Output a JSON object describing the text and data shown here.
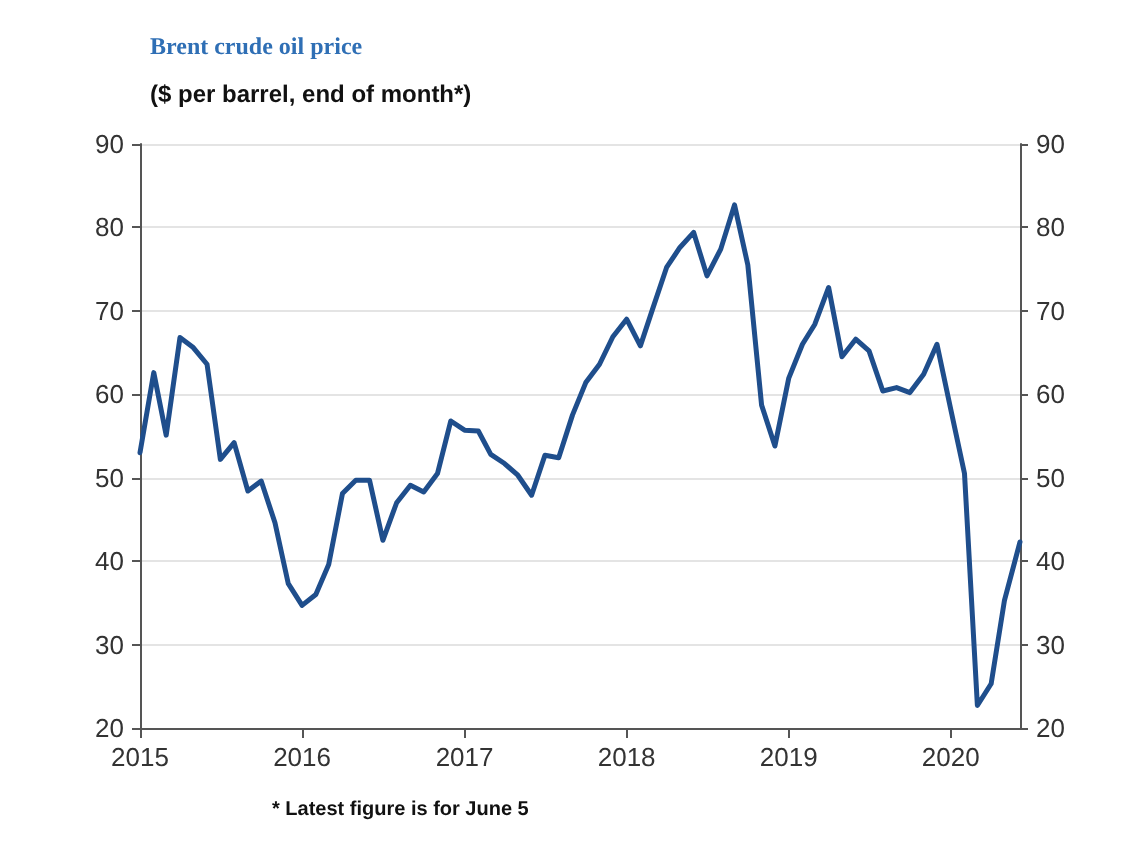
{
  "chart_data": {
    "type": "line",
    "title": "Brent crude oil price",
    "subtitle": "($ per barrel, end of month*)",
    "annotations": [
      "* Latest figure is for June 5"
    ],
    "x": [
      "2015-01",
      "2015-02",
      "2015-03",
      "2015-04",
      "2015-05",
      "2015-06",
      "2015-07",
      "2015-08",
      "2015-09",
      "2015-10",
      "2015-11",
      "2015-12",
      "2016-01",
      "2016-02",
      "2016-03",
      "2016-04",
      "2016-05",
      "2016-06",
      "2016-07",
      "2016-08",
      "2016-09",
      "2016-10",
      "2016-11",
      "2016-12",
      "2017-01",
      "2017-02",
      "2017-03",
      "2017-04",
      "2017-05",
      "2017-06",
      "2017-07",
      "2017-08",
      "2017-09",
      "2017-10",
      "2017-11",
      "2017-12",
      "2018-01",
      "2018-02",
      "2018-03",
      "2018-04",
      "2018-05",
      "2018-06",
      "2018-07",
      "2018-08",
      "2018-09",
      "2018-10",
      "2018-11",
      "2018-12",
      "2019-01",
      "2019-02",
      "2019-03",
      "2019-04",
      "2019-05",
      "2019-06",
      "2019-07",
      "2019-08",
      "2019-09",
      "2019-10",
      "2019-11",
      "2019-12",
      "2020-01",
      "2020-02",
      "2020-03",
      "2020-04",
      "2020-05",
      "2020-06-05"
    ],
    "series": [
      {
        "color": "#1f4e8c",
        "values": [
          53,
          62.6,
          55.1,
          66.8,
          65.6,
          63.6,
          52.2,
          54.2,
          48.4,
          49.6,
          44.6,
          37.3,
          34.7,
          36,
          39.6,
          48.1,
          49.7,
          49.7,
          42.5,
          47,
          49.1,
          48.3,
          50.5,
          56.8,
          55.7,
          55.6,
          52.8,
          51.7,
          50.3,
          47.9,
          52.7,
          52.4,
          57.5,
          61.4,
          63.6,
          66.9,
          69,
          65.8,
          70.3,
          75.2,
          77.6,
          79.4,
          74.2,
          77.4,
          82.7,
          75.5,
          58.7,
          53.8,
          61.9,
          66,
          68.4,
          72.8,
          64.5,
          66.6,
          65.2,
          60.4,
          60.8,
          60.2,
          62.4,
          66,
          58.2,
          50.5,
          22.7,
          25.3,
          35.3,
          42.3
        ]
      }
    ],
    "xlim": [
      "2015-01",
      "2020-06-05"
    ],
    "xticks": [
      {
        "value": "2015",
        "label": "2015"
      },
      {
        "value": "2016",
        "label": "2016"
      },
      {
        "value": "2017",
        "label": "2017"
      },
      {
        "value": "2018",
        "label": "2018"
      },
      {
        "value": "2019",
        "label": "2019"
      },
      {
        "value": "2020",
        "label": "2020"
      }
    ],
    "ylim": [
      20,
      90
    ],
    "yticks": [
      20,
      30,
      40,
      50,
      60,
      70,
      80,
      90
    ],
    "y2lim": [
      20,
      90
    ],
    "y2ticks": [
      20,
      30,
      40,
      50,
      60,
      70,
      80,
      90
    ],
    "grid": "y",
    "marker": "none",
    "line_style": "solid"
  }
}
